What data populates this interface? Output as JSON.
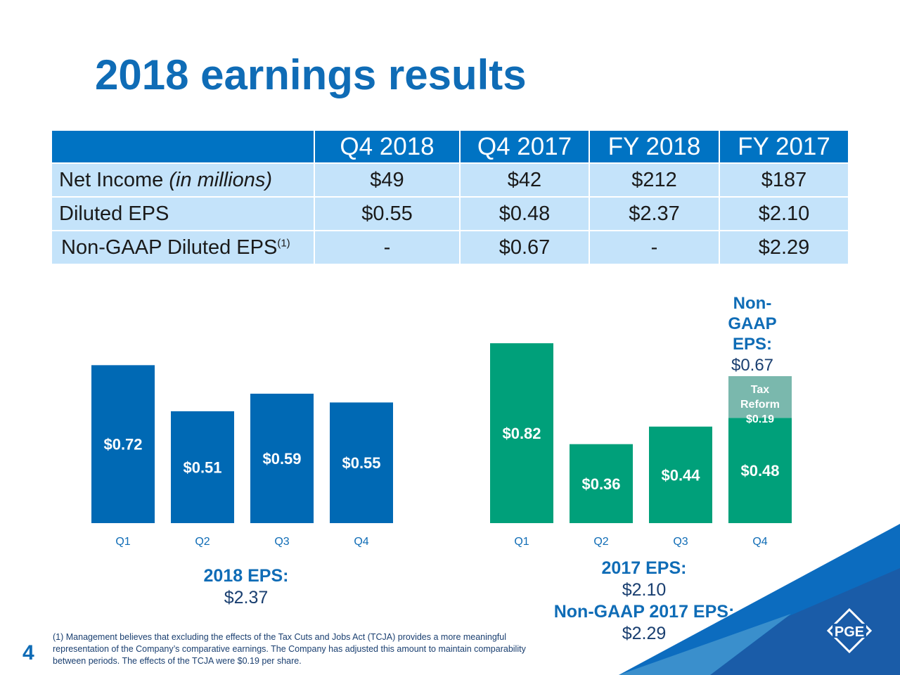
{
  "title": "2018 earnings results",
  "table": {
    "headers": [
      "",
      "Q4 2018",
      "Q4 2017",
      "FY 2018",
      "FY 2017"
    ],
    "rows": [
      {
        "label": "Net Income",
        "label_note": "(in millions)",
        "values": [
          "$49",
          "$42",
          "$212",
          "$187"
        ]
      },
      {
        "label": "Diluted EPS",
        "label_note": "",
        "values": [
          "$0.55",
          "$0.48",
          "$2.37",
          "$2.10"
        ]
      },
      {
        "label": "Non-GAAP Diluted EPS",
        "label_note": "(1)",
        "values": [
          "-",
          "$0.67",
          "-",
          "$2.29"
        ]
      }
    ]
  },
  "chart_data": {
    "type": "bar",
    "categories": [
      "Q1",
      "Q2",
      "Q3",
      "Q4"
    ],
    "series": [
      {
        "name": "2018",
        "values": [
          0.72,
          0.51,
          0.59,
          0.55
        ],
        "labels": [
          "$0.72",
          "$0.51",
          "$0.59",
          "$0.55"
        ],
        "color": "#0069b4"
      },
      {
        "name": "2017",
        "values": [
          0.82,
          0.36,
          0.44,
          0.48
        ],
        "labels": [
          "$0.82",
          "$0.36",
          "$0.44",
          "$0.48"
        ],
        "color": "#00a07a"
      }
    ],
    "stacked_addition": {
      "series": "2017",
      "category": "Q4",
      "value": 0.19,
      "label_lines": [
        "Tax",
        "Reform",
        "$0.19"
      ],
      "color": "#7ab8ad"
    },
    "top_annotation": {
      "lines": [
        "Non-",
        "GAAP",
        "EPS:"
      ],
      "value": "$0.67"
    }
  },
  "summary": {
    "eps_2018_label": "2018 EPS:",
    "eps_2018_value": "$2.37",
    "eps_2017_label": "2017 EPS:",
    "eps_2017_value": "$2.10",
    "nongaap_2017_label": "Non-GAAP 2017 EPS:",
    "nongaap_2017_value": "$2.29"
  },
  "footnote": "(1) Management believes that excluding the effects of the Tax Cuts and Jobs Act (TCJA) provides a more meaningful representation of the Company’s comparative earnings. The Company has adjusted this amount to maintain comparability between periods. The effects of the TCJA were $0.19 per share.",
  "page_number": "4",
  "logo_text": "PGE"
}
